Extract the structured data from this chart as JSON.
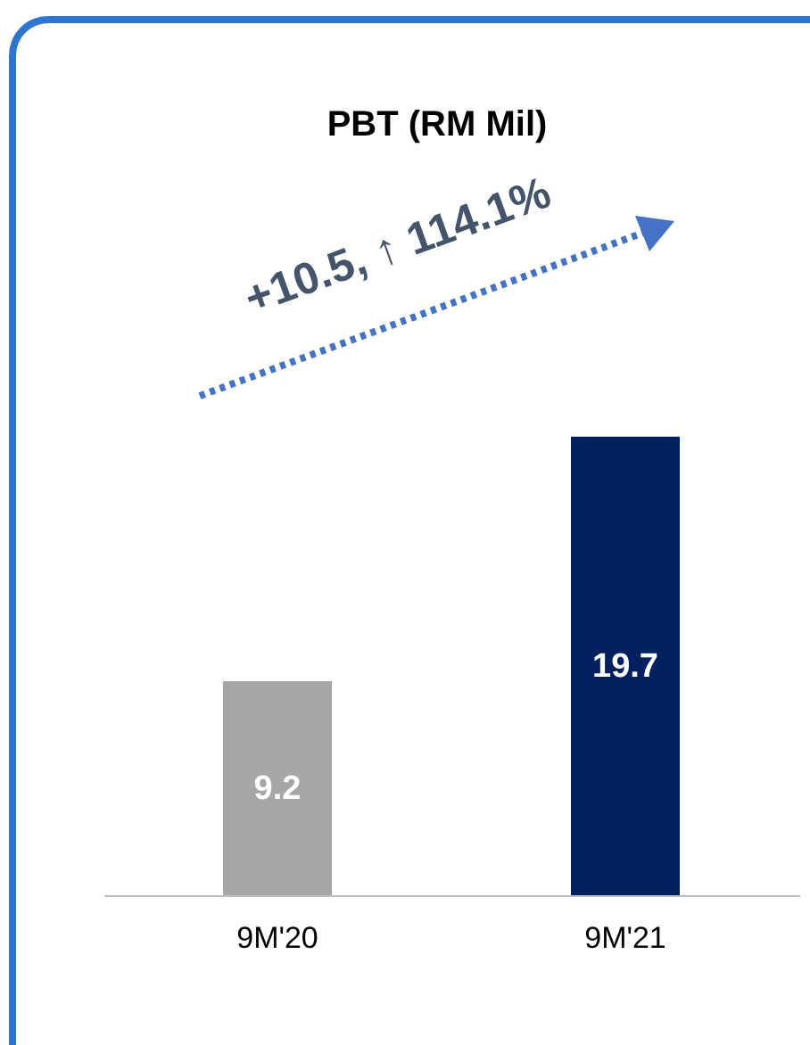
{
  "chart_data": {
    "type": "bar",
    "title": "PBT (RM Mil)",
    "annotations": [
      "+10.5, ↑ 114.1%"
    ],
    "categories": [
      "9M'20",
      "9M'21"
    ],
    "values": [
      9.2,
      19.7
    ],
    "colors": [
      "#a6a6a6",
      "#002060"
    ],
    "data_labels": true,
    "grid": false,
    "legend": false,
    "tick_labels": "x"
  }
}
